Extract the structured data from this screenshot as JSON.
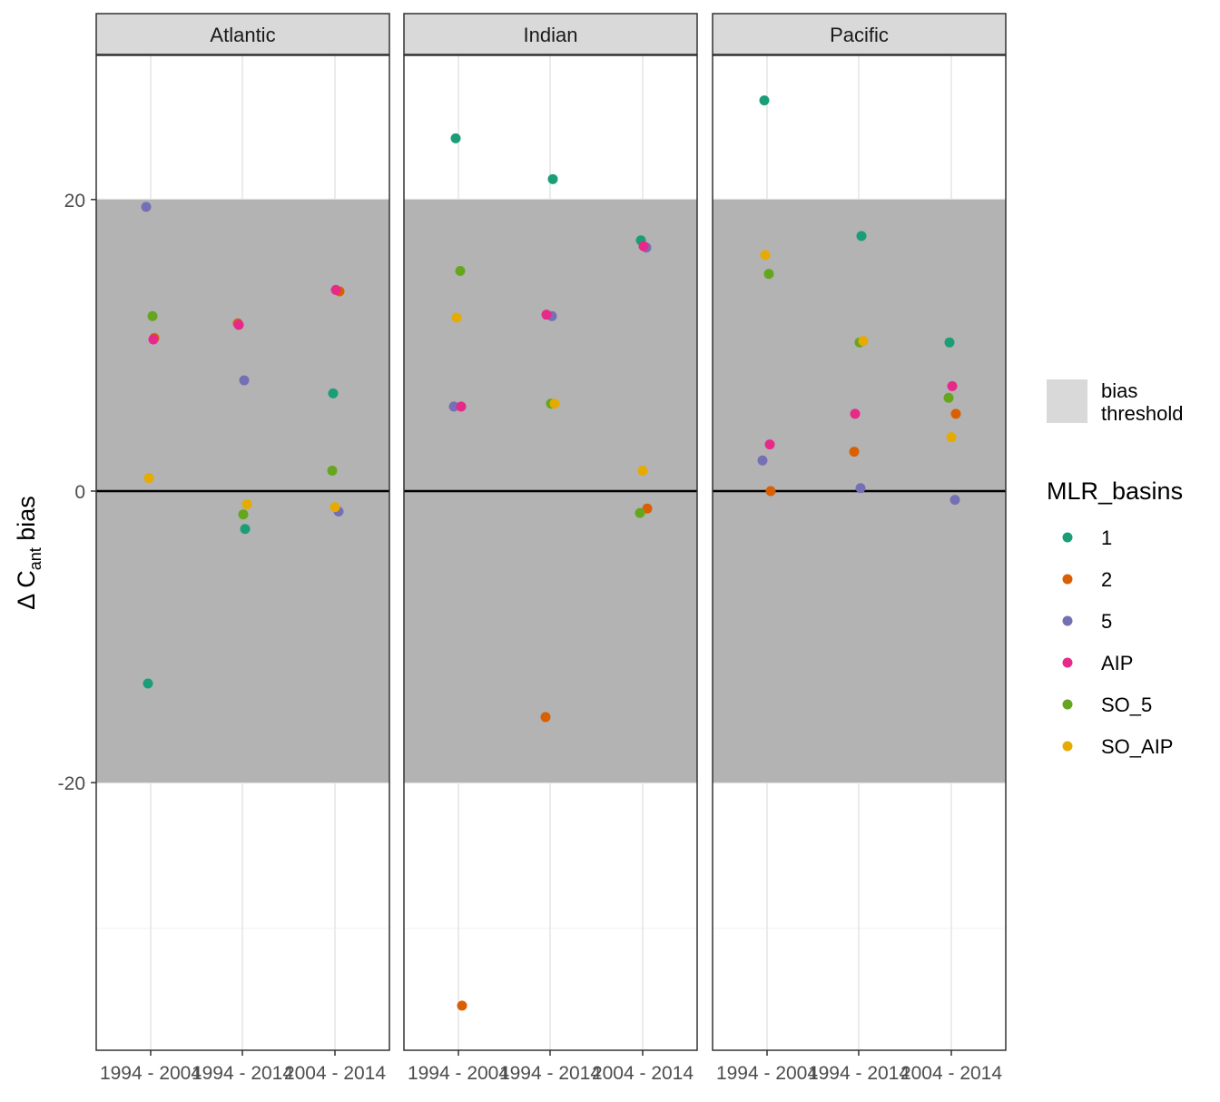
{
  "chart_data": {
    "type": "scatter",
    "facets": [
      "Atlantic",
      "Indian",
      "Pacific"
    ],
    "x_categories": [
      "1994 - 2004",
      "1994 - 2014",
      "2004 - 2014"
    ],
    "ylabel": {
      "prefix": "Δ C",
      "subscript": "ant",
      "suffix": " bias"
    },
    "ylim": [
      -38,
      30
    ],
    "y_ticks": [
      -20,
      0,
      20
    ],
    "bias_threshold": [
      -20,
      20
    ],
    "grid": true,
    "legend_position": "right",
    "legend": {
      "band_label_line1": "bias",
      "band_label_line2": "threshold",
      "title": "MLR_basins",
      "entries": [
        "1",
        "2",
        "5",
        "AIP",
        "SO_5",
        "SO_AIP"
      ]
    },
    "colors": {
      "1": "#1b9e77",
      "2": "#d95f02",
      "5": "#7570b3",
      "AIP": "#e7298a",
      "SO_5": "#66a61e",
      "SO_AIP": "#e6ab02",
      "band": "#b3b3b3",
      "legend_band": "#d9d9d9",
      "strip": "#d9d9d9"
    },
    "series": [
      {
        "name": "1",
        "points": [
          [
            "Atlantic",
            "1994 - 2004",
            -13.2
          ],
          [
            "Atlantic",
            "1994 - 2014",
            -2.6
          ],
          [
            "Atlantic",
            "2004 - 2014",
            6.7
          ],
          [
            "Indian",
            "1994 - 2004",
            24.2
          ],
          [
            "Indian",
            "1994 - 2014",
            21.4
          ],
          [
            "Indian",
            "2004 - 2014",
            17.2
          ],
          [
            "Pacific",
            "1994 - 2004",
            26.8
          ],
          [
            "Pacific",
            "1994 - 2014",
            17.5
          ],
          [
            "Pacific",
            "2004 - 2014",
            10.2
          ]
        ]
      },
      {
        "name": "2",
        "points": [
          [
            "Atlantic",
            "1994 - 2004",
            10.5
          ],
          [
            "Atlantic",
            "1994 - 2014",
            11.5
          ],
          [
            "Atlantic",
            "2004 - 2014",
            13.7
          ],
          [
            "Indian",
            "1994 - 2004",
            -35.3
          ],
          [
            "Indian",
            "1994 - 2014",
            -15.5
          ],
          [
            "Indian",
            "2004 - 2014",
            -1.2
          ],
          [
            "Pacific",
            "1994 - 2004",
            0.0
          ],
          [
            "Pacific",
            "1994 - 2014",
            2.7
          ],
          [
            "Pacific",
            "2004 - 2014",
            5.3
          ]
        ]
      },
      {
        "name": "5",
        "points": [
          [
            "Atlantic",
            "1994 - 2004",
            19.5
          ],
          [
            "Atlantic",
            "1994 - 2014",
            7.6
          ],
          [
            "Atlantic",
            "2004 - 2014",
            -1.4
          ],
          [
            "Indian",
            "1994 - 2004",
            5.8
          ],
          [
            "Indian",
            "1994 - 2014",
            12.0
          ],
          [
            "Indian",
            "2004 - 2014",
            16.7
          ],
          [
            "Pacific",
            "1994 - 2004",
            2.1
          ],
          [
            "Pacific",
            "1994 - 2014",
            0.2
          ],
          [
            "Pacific",
            "2004 - 2014",
            -0.6
          ]
        ]
      },
      {
        "name": "AIP",
        "points": [
          [
            "Atlantic",
            "1994 - 2004",
            10.4
          ],
          [
            "Atlantic",
            "1994 - 2014",
            11.4
          ],
          [
            "Atlantic",
            "2004 - 2014",
            13.8
          ],
          [
            "Indian",
            "1994 - 2004",
            5.8
          ],
          [
            "Indian",
            "1994 - 2014",
            12.1
          ],
          [
            "Indian",
            "2004 - 2014",
            16.8
          ],
          [
            "Pacific",
            "1994 - 2004",
            3.2
          ],
          [
            "Pacific",
            "1994 - 2014",
            5.3
          ],
          [
            "Pacific",
            "2004 - 2014",
            7.2
          ]
        ]
      },
      {
        "name": "SO_5",
        "points": [
          [
            "Atlantic",
            "1994 - 2004",
            12.0
          ],
          [
            "Atlantic",
            "1994 - 2014",
            -1.6
          ],
          [
            "Atlantic",
            "2004 - 2014",
            1.4
          ],
          [
            "Indian",
            "1994 - 2004",
            15.1
          ],
          [
            "Indian",
            "1994 - 2014",
            6.0
          ],
          [
            "Indian",
            "2004 - 2014",
            -1.5
          ],
          [
            "Pacific",
            "1994 - 2004",
            14.9
          ],
          [
            "Pacific",
            "1994 - 2014",
            10.2
          ],
          [
            "Pacific",
            "2004 - 2014",
            6.4
          ]
        ]
      },
      {
        "name": "SO_AIP",
        "points": [
          [
            "Atlantic",
            "1994 - 2004",
            0.9
          ],
          [
            "Atlantic",
            "1994 - 2014",
            -0.9
          ],
          [
            "Atlantic",
            "2004 - 2014",
            -1.1
          ],
          [
            "Indian",
            "1994 - 2004",
            11.9
          ],
          [
            "Indian",
            "1994 - 2014",
            6.0
          ],
          [
            "Indian",
            "2004 - 2014",
            1.4
          ],
          [
            "Pacific",
            "1994 - 2004",
            16.2
          ],
          [
            "Pacific",
            "1994 - 2014",
            10.3
          ],
          [
            "Pacific",
            "2004 - 2014",
            3.7
          ]
        ]
      }
    ]
  }
}
